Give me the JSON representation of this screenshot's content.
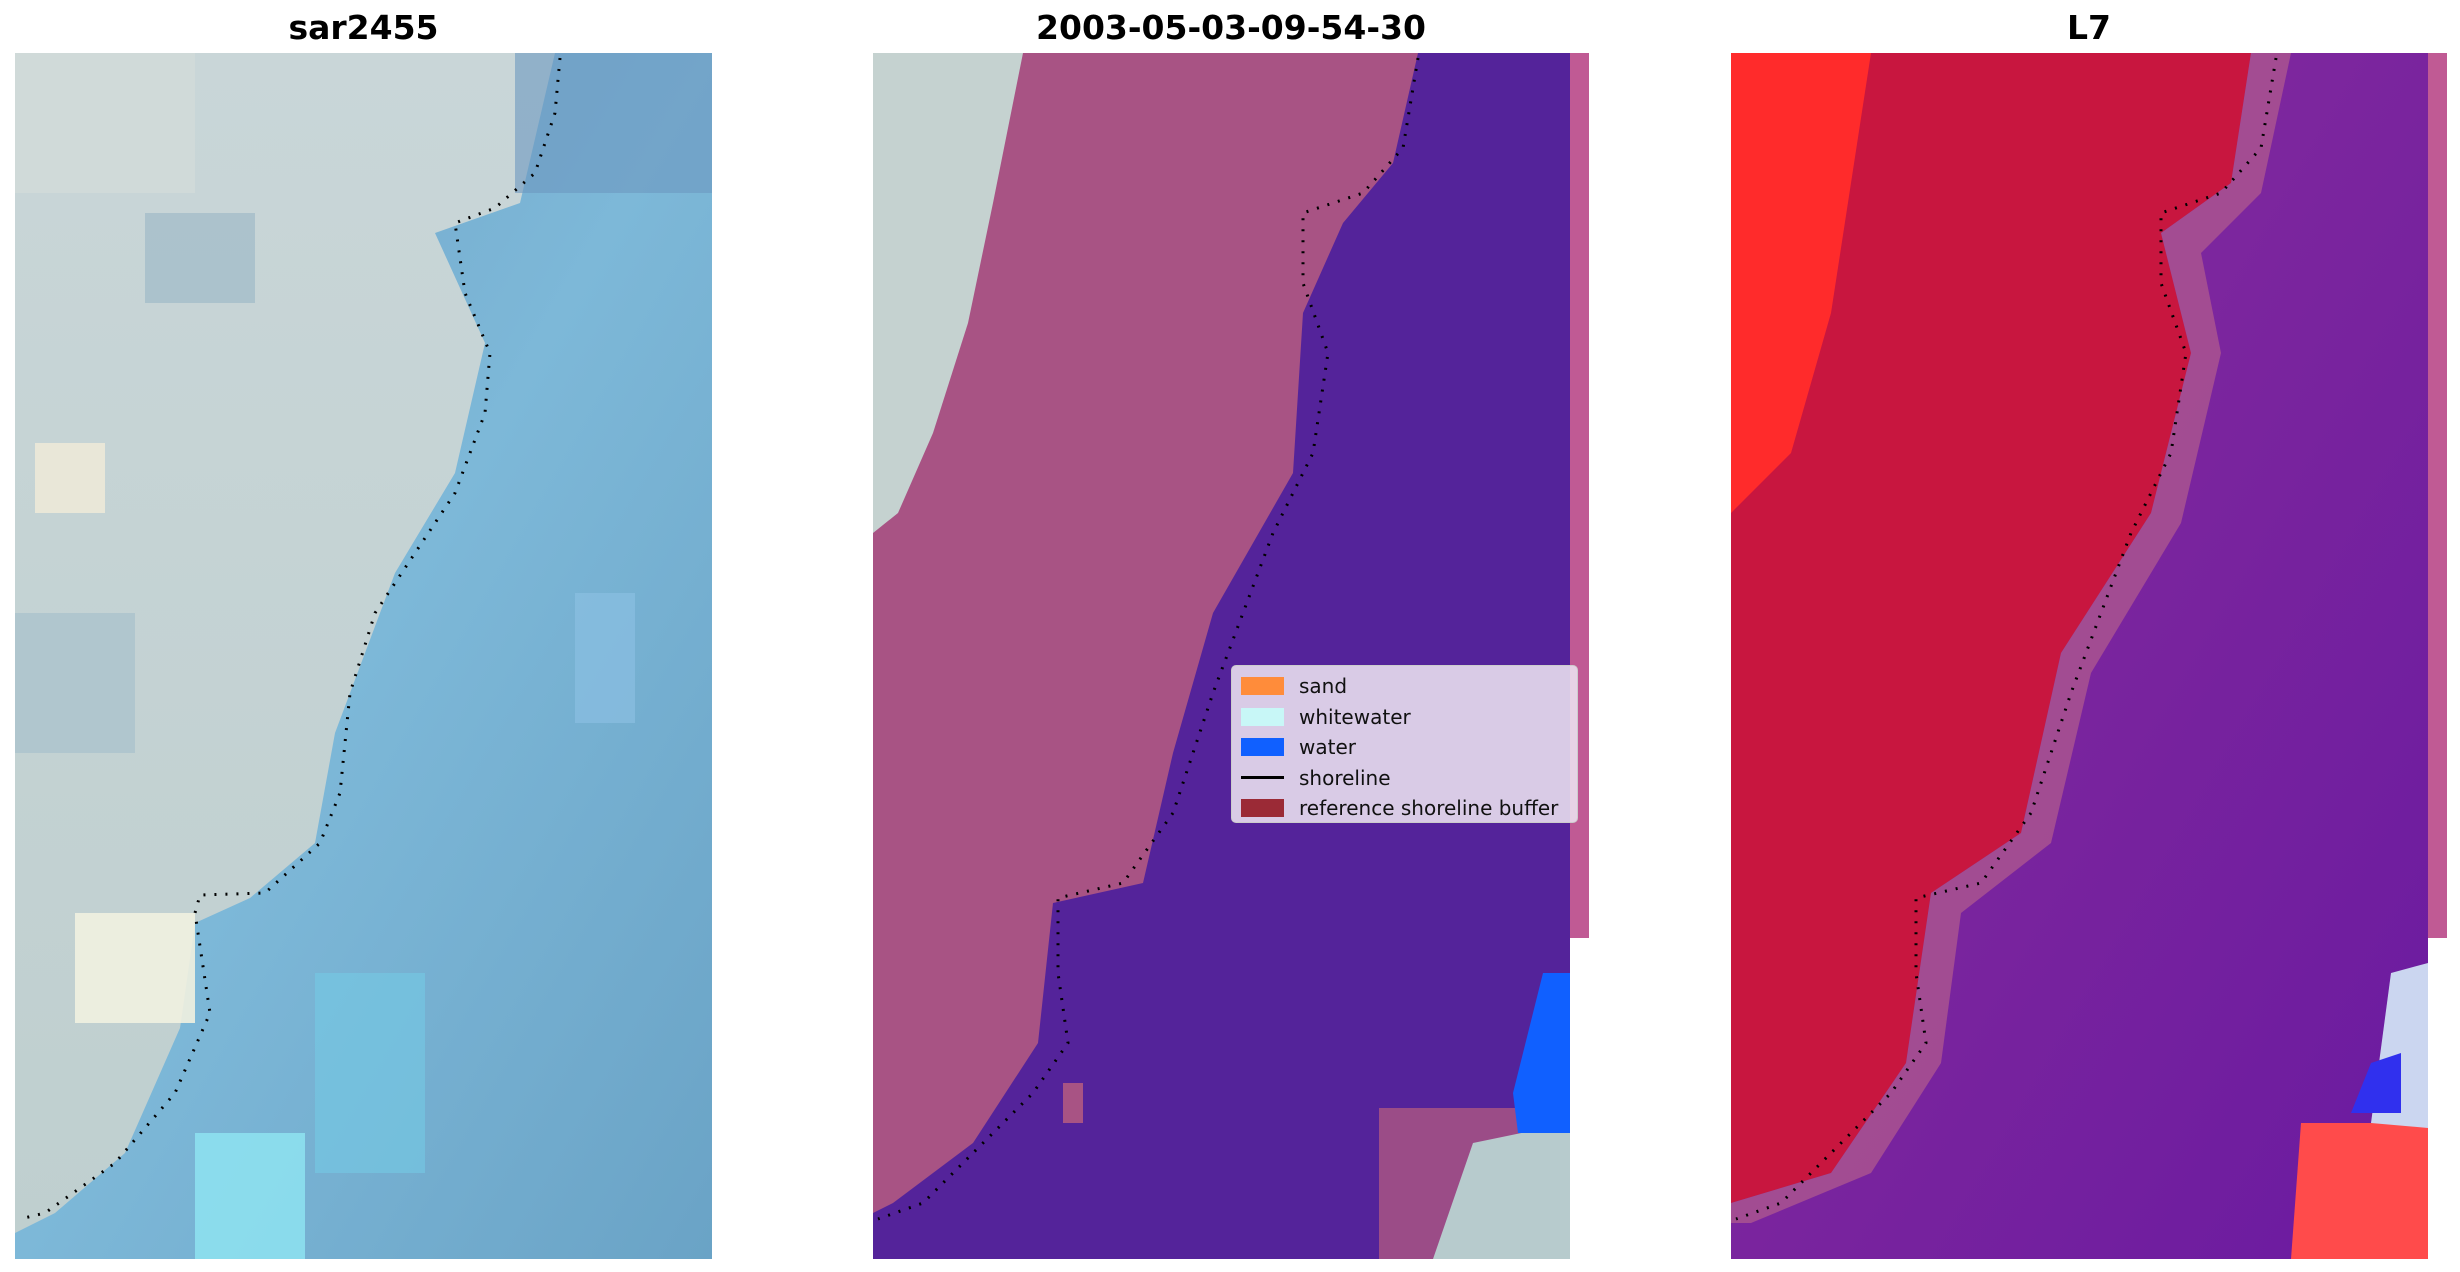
{
  "panels": [
    {
      "title": "sar2455"
    },
    {
      "title": "2003-05-03-09-54-30"
    },
    {
      "title": "L7"
    }
  ],
  "legend": {
    "items": [
      {
        "label": "sand",
        "color": "#ff8c3a",
        "kind": "patch"
      },
      {
        "label": "whitewater",
        "color": "#c8f7f7",
        "kind": "patch"
      },
      {
        "label": "water",
        "color": "#1060ff",
        "kind": "patch"
      },
      {
        "label": "shoreline",
        "color": "#000000",
        "kind": "line"
      },
      {
        "label": "reference shoreline buffer",
        "color": "#9b2a36",
        "kind": "patch"
      }
    ]
  },
  "colors": {
    "sar_sand": "#c9d5d2",
    "sar_water": "#79a9cc",
    "class_sand": "#a85384",
    "class_water": "#54239a",
    "mndwi_sand": "#c8163f",
    "mndwi_water": "#7a2aa0",
    "mndwi_high": "#ff2b2b"
  }
}
